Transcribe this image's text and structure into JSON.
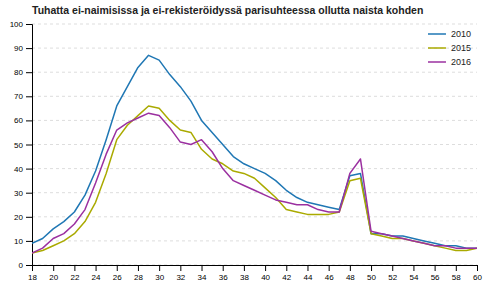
{
  "chart_data": {
    "type": "line",
    "title": "Tuhatta ei-naimisissa ja ei-rekisteröidyssä parisuhteessa ollutta naista kohden",
    "x": [
      18,
      19,
      20,
      21,
      22,
      23,
      24,
      25,
      26,
      27,
      28,
      29,
      30,
      31,
      32,
      33,
      34,
      35,
      36,
      37,
      38,
      39,
      40,
      41,
      42,
      43,
      44,
      45,
      46,
      47,
      48,
      49,
      50,
      51,
      52,
      53,
      54,
      55,
      56,
      57,
      58,
      59,
      60
    ],
    "series": [
      {
        "name": "2010",
        "color": "#1F77B4",
        "values": [
          9,
          11,
          15,
          18,
          22,
          29,
          39,
          52,
          66,
          74,
          82,
          87,
          85,
          79,
          74,
          68,
          60,
          55,
          50,
          45,
          42,
          40,
          38,
          35,
          31,
          28,
          26,
          25,
          24,
          23,
          37,
          38,
          13,
          13,
          12,
          12,
          11,
          10,
          9,
          8,
          8,
          7,
          7
        ]
      },
      {
        "name": "2015",
        "color": "#AAAA00",
        "values": [
          5,
          6,
          8,
          10,
          13,
          18,
          26,
          38,
          52,
          58,
          62,
          66,
          65,
          60,
          56,
          55,
          48,
          44,
          42,
          39,
          38,
          36,
          32,
          28,
          23,
          22,
          21,
          21,
          21,
          22,
          35,
          36,
          13,
          12,
          11,
          11,
          10,
          9,
          8,
          7,
          6,
          6,
          7
        ]
      },
      {
        "name": "2016",
        "color": "#9B30A0",
        "values": [
          5,
          7,
          11,
          13,
          17,
          23,
          34,
          46,
          56,
          59,
          61,
          63,
          62,
          57,
          51,
          50,
          52,
          47,
          40,
          35,
          33,
          31,
          29,
          27,
          26,
          25,
          25,
          23,
          22,
          22,
          38,
          44,
          14,
          13,
          12,
          11,
          10,
          9,
          8,
          8,
          7,
          7,
          7
        ]
      }
    ],
    "xlim": [
      18,
      60
    ],
    "ylim": [
      0,
      100
    ],
    "xticks": [
      18,
      20,
      22,
      24,
      26,
      28,
      30,
      32,
      34,
      36,
      38,
      40,
      42,
      44,
      46,
      48,
      50,
      52,
      54,
      56,
      58,
      60
    ],
    "yticks": [
      0,
      10,
      20,
      30,
      40,
      50,
      60,
      70,
      80,
      90,
      100
    ],
    "grid": "y",
    "legend": "upper right"
  }
}
